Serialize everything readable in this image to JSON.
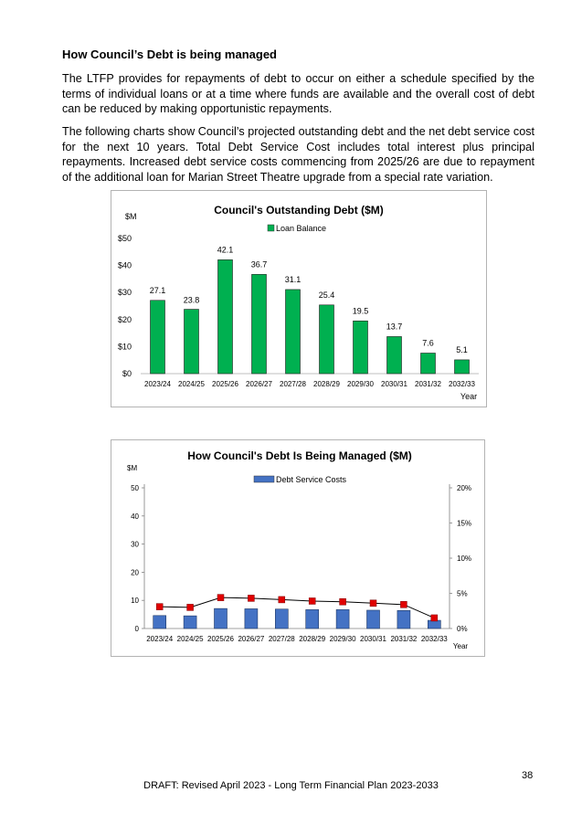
{
  "heading": "How Council’s Debt is being managed",
  "paragraph1": "The LTFP provides for repayments of debt to occur on either a schedule specified by the terms of individual loans or at a time where funds are available and the overall cost of debt can be reduced by making opportunistic repayments.",
  "paragraph2": "The following charts show Council’s projected outstanding debt and the net debt service cost for the next 10 years. Total Debt Service Cost includes total interest plus principal repayments. Increased debt service costs commencing from 2025/26 are due to repayment of the additional loan for Marian Street Theatre upgrade from a special rate variation.",
  "chart_data": [
    {
      "type": "bar",
      "title": "Council's Outstanding Debt  ($M)",
      "ylabel": "$M",
      "xlabel": "Year",
      "categories": [
        "2023/24",
        "2024/25",
        "2025/26",
        "2026/27",
        "2027/28",
        "2028/29",
        "2029/30",
        "2030/31",
        "2031/32",
        "2032/33"
      ],
      "series": [
        {
          "name": "Loan Balance",
          "values": [
            27.1,
            23.8,
            42.1,
            36.7,
            31.1,
            25.4,
            19.5,
            13.7,
            7.6,
            5.1
          ]
        }
      ],
      "value_labels": [
        "27.1",
        "23.8",
        "42.1",
        "36.7",
        "31.1",
        "25.4",
        "19.5",
        "13.7",
        "7.6",
        "5.1"
      ],
      "ylim": [
        0,
        50
      ],
      "yticks": [
        "$0",
        "$10",
        "$20",
        "$30",
        "$40",
        "$50"
      ],
      "legend_position": "top",
      "grid": false,
      "bar_color": "#00b050"
    },
    {
      "type": "bar",
      "title": "How Council's Debt Is Being Managed ($M)",
      "ylabel": "$M",
      "xlabel": "Year",
      "categories": [
        "2023/24",
        "2024/25",
        "2025/26",
        "2026/27",
        "2027/28",
        "2028/29",
        "2029/30",
        "2030/31",
        "2031/32",
        "2032/33"
      ],
      "series": [
        {
          "name": "Debt Service Costs",
          "values": [
            4.6,
            4.5,
            7.1,
            7.0,
            6.9,
            6.7,
            6.7,
            6.5,
            6.4,
            2.9
          ]
        }
      ],
      "secondary_series": {
        "values": [
          3.1,
          3.0,
          4.4,
          4.3,
          4.1,
          3.9,
          3.8,
          3.6,
          3.4,
          1.5
        ],
        "marker_color": "#e00000"
      },
      "ylim": [
        0,
        50
      ],
      "yticks": [
        "0",
        "10",
        "20",
        "30",
        "40",
        "50"
      ],
      "y2lim": [
        0,
        20
      ],
      "y2ticks": [
        "0%",
        "5%",
        "10%",
        "15%",
        "20%"
      ],
      "legend_position": "top",
      "grid": false,
      "bar_color": "#4472c4"
    }
  ],
  "page_number": "38",
  "footer": "DRAFT: Revised April 2023 - Long Term Financial Plan 2023-2033"
}
